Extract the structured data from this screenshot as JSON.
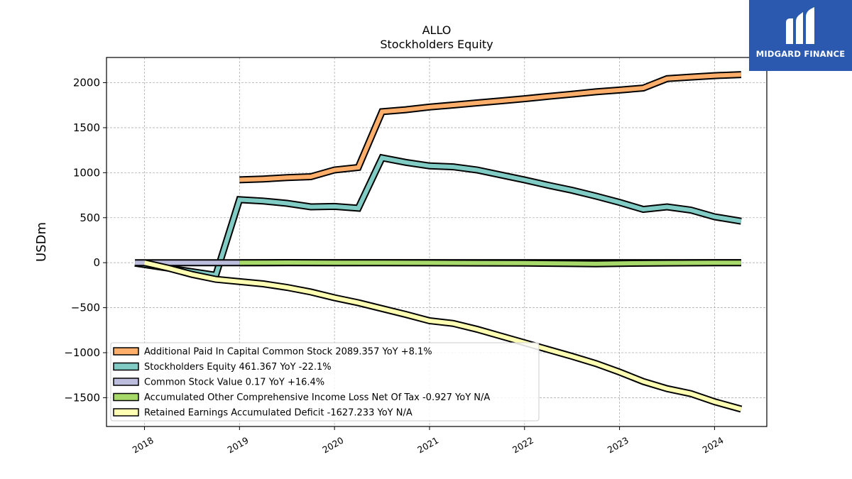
{
  "chart_data": {
    "type": "line",
    "title": "ALLO",
    "subtitle": "Stockholders  Equity",
    "ylabel": "USDm",
    "xlabel": "",
    "xlim": [
      2017.6,
      2024.55
    ],
    "ylim": [
      -1820,
      2280
    ],
    "grid": true,
    "legend_position": "lower-left",
    "x_ticks": [
      2018,
      2019,
      2020,
      2021,
      2022,
      2023,
      2024
    ],
    "x_tick_labels": [
      "2018",
      "2019",
      "2020",
      "2021",
      "2022",
      "2023",
      "2024"
    ],
    "y_ticks": [
      2000,
      1500,
      1000,
      500,
      0,
      -500,
      -1000,
      -1500
    ],
    "y_tick_labels": [
      "2000",
      "1500",
      "1000",
      "500",
      "0",
      "−500",
      "−1000",
      "−1500"
    ],
    "series": [
      {
        "name": "Additional Paid In Capital Common Stock  2089.357 YoY +8.1%",
        "color": "#fdae6b",
        "points": [
          [
            2019.0,
            921
          ],
          [
            2019.25,
            930
          ],
          [
            2019.5,
            945
          ],
          [
            2019.75,
            955
          ],
          [
            2020.0,
            1030
          ],
          [
            2020.25,
            1058
          ],
          [
            2020.5,
            1678
          ],
          [
            2020.75,
            1700
          ],
          [
            2021.0,
            1730
          ],
          [
            2021.25,
            1752
          ],
          [
            2021.5,
            1775
          ],
          [
            2021.75,
            1798
          ],
          [
            2022.0,
            1822
          ],
          [
            2022.25,
            1848
          ],
          [
            2022.5,
            1872
          ],
          [
            2022.75,
            1898
          ],
          [
            2023.0,
            1918
          ],
          [
            2023.25,
            1940
          ],
          [
            2023.5,
            2045
          ],
          [
            2023.75,
            2062
          ],
          [
            2024.0,
            2078
          ],
          [
            2024.28,
            2090
          ]
        ]
      },
      {
        "name": "Stockholders Equity  461.367 YoY -22.1%",
        "color": "#80cbc4",
        "points": [
          [
            2017.9,
            -5
          ],
          [
            2018.75,
            -140
          ],
          [
            2019.0,
            700
          ],
          [
            2019.25,
            685
          ],
          [
            2019.5,
            660
          ],
          [
            2019.75,
            620
          ],
          [
            2020.0,
            625
          ],
          [
            2020.25,
            605
          ],
          [
            2020.5,
            1165
          ],
          [
            2020.75,
            1115
          ],
          [
            2021.0,
            1075
          ],
          [
            2021.25,
            1065
          ],
          [
            2021.5,
            1030
          ],
          [
            2021.75,
            975
          ],
          [
            2022.0,
            920
          ],
          [
            2022.25,
            860
          ],
          [
            2022.5,
            805
          ],
          [
            2022.75,
            740
          ],
          [
            2023.0,
            670
          ],
          [
            2023.25,
            592
          ],
          [
            2023.5,
            620
          ],
          [
            2023.75,
            585
          ],
          [
            2024.0,
            510
          ],
          [
            2024.28,
            461
          ]
        ]
      },
      {
        "name": "Common Stock Value  0.17 YoY +16.4%",
        "color": "#bcbddc",
        "points": [
          [
            2017.9,
            0
          ],
          [
            2019.0,
            0.1
          ],
          [
            2024.28,
            0.17
          ]
        ]
      },
      {
        "name": "Accumulated Other Comprehensive Income Loss Net Of Tax  -0.927 YoY N/A",
        "color": "#a6d96a",
        "points": [
          [
            2019.0,
            0
          ],
          [
            2019.5,
            1
          ],
          [
            2020.0,
            0
          ],
          [
            2020.5,
            0
          ],
          [
            2021.0,
            -2
          ],
          [
            2021.5,
            -3
          ],
          [
            2022.0,
            -5
          ],
          [
            2022.5,
            -10
          ],
          [
            2022.75,
            -12
          ],
          [
            2023.0,
            -8
          ],
          [
            2023.5,
            -3
          ],
          [
            2024.0,
            -1
          ],
          [
            2024.28,
            -0.927
          ]
        ]
      },
      {
        "name": "Retained Earnings Accumulated Deficit  -1627.233 YoY N/A",
        "color": "#ffffb3",
        "points": [
          [
            2018.0,
            0
          ],
          [
            2018.25,
            -60
          ],
          [
            2018.5,
            -130
          ],
          [
            2018.75,
            -185
          ],
          [
            2019.0,
            -210
          ],
          [
            2019.25,
            -235
          ],
          [
            2019.5,
            -275
          ],
          [
            2019.75,
            -325
          ],
          [
            2020.0,
            -390
          ],
          [
            2020.25,
            -445
          ],
          [
            2020.5,
            -510
          ],
          [
            2020.75,
            -575
          ],
          [
            2021.0,
            -645
          ],
          [
            2021.25,
            -675
          ],
          [
            2021.5,
            -740
          ],
          [
            2021.75,
            -815
          ],
          [
            2022.0,
            -890
          ],
          [
            2022.25,
            -965
          ],
          [
            2022.5,
            -1040
          ],
          [
            2022.75,
            -1120
          ],
          [
            2023.0,
            -1215
          ],
          [
            2023.25,
            -1320
          ],
          [
            2023.5,
            -1400
          ],
          [
            2023.75,
            -1455
          ],
          [
            2024.0,
            -1545
          ],
          [
            2024.28,
            -1627
          ]
        ]
      }
    ]
  },
  "logo": {
    "text": "MIDGARD FINANCE",
    "background": "#2b59b0"
  }
}
